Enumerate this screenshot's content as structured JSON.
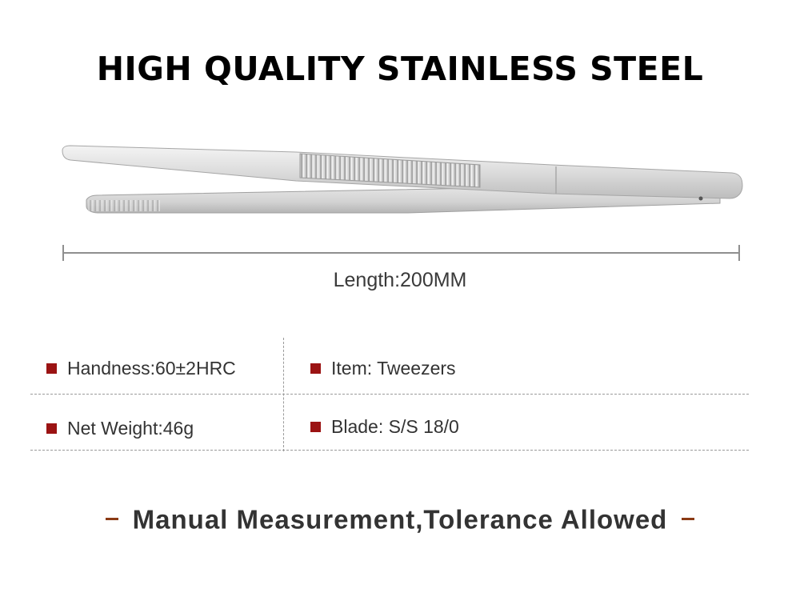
{
  "title": "HIGH QUALITY STAINLESS STEEL",
  "length": "Length:200MM",
  "specs": {
    "hardness": "Handness:60±2HRC",
    "item": "Item: Tweezers",
    "weight": "Net Weight:46g",
    "blade": "Blade: S/S 18/0"
  },
  "footer": "Manual Measurement,Tolerance Allowed",
  "colors": {
    "bullet": "#9b1313",
    "dash": "#8b3a14",
    "line": "#8f8f8f"
  },
  "icons": {
    "product": "tweezers-image",
    "bullet": "square-bullet-icon"
  }
}
